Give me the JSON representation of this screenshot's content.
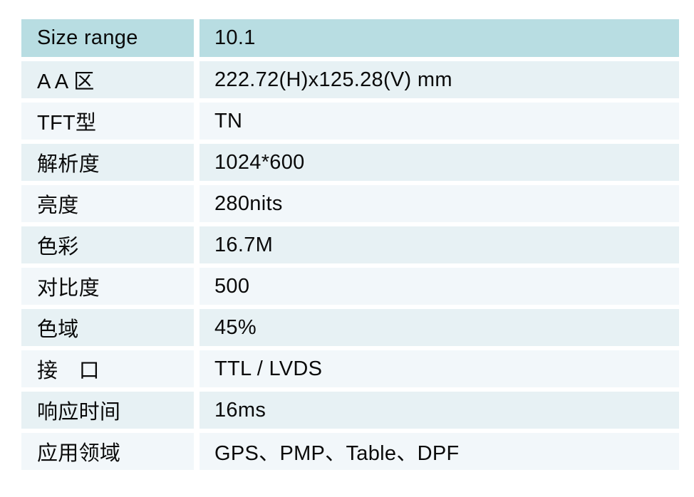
{
  "table": {
    "title": "LCD panel specification table",
    "colors": {
      "header_bg": "#b8dde2",
      "row_teal_bg": "#e7f1f4",
      "row_light_bg": "#f2f7fa",
      "gap_color": "#ffffff",
      "text_color": "#0a0a0a"
    },
    "rows": [
      {
        "label": "Size range",
        "value": "10.1"
      },
      {
        "label": "A A 区",
        "value": "222.72(H)x125.28(V) mm"
      },
      {
        "label": "TFT型",
        "value": "TN"
      },
      {
        "label": "解析度",
        "value": "1024*600"
      },
      {
        "label": "亮度",
        "value": "280nits"
      },
      {
        "label": "色彩",
        "value": "16.7M"
      },
      {
        "label": "对比度",
        "value": "500"
      },
      {
        "label": "色域",
        "value": "45%"
      },
      {
        "label": "接　口",
        "value": "TTL / LVDS"
      },
      {
        "label": "响应时间",
        "value": "16ms"
      },
      {
        "label": "应用领域",
        "value": "GPS、PMP、Table、DPF"
      }
    ]
  }
}
